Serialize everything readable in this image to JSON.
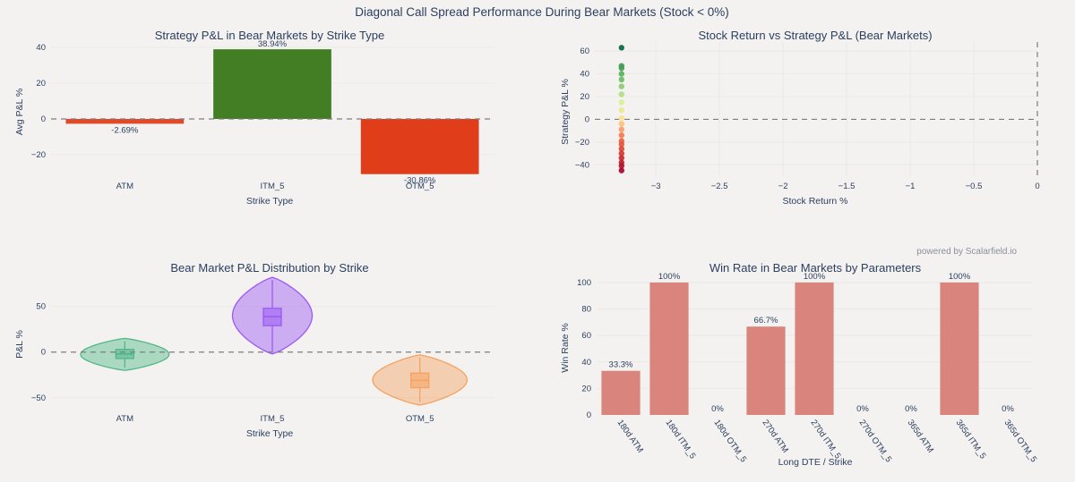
{
  "figure_title": "Diagonal Call Spread Performance During Bear Markets (Stock < 0%)",
  "credit": "powered by Scalarfield.io",
  "chart_data": [
    {
      "id": "pnl_by_strike",
      "type": "bar",
      "title": "Strategy P&L in Bear Markets by Strike Type",
      "xlabel": "Strike Type",
      "ylabel": "Avg P&L %",
      "categories": [
        "ATM",
        "ITM_5",
        "OTM_5"
      ],
      "values": [
        -2.69,
        38.94,
        -30.86
      ],
      "labels": [
        "-2.69%",
        "38.94%",
        "-30.86%"
      ],
      "colors": [
        "#e04a28",
        "#437e25",
        "#e03d1b"
      ],
      "ylim": [
        -32,
        43
      ],
      "yticks": [
        -20,
        0,
        20,
        40
      ],
      "zero_line": "dashed"
    },
    {
      "id": "return_vs_pnl",
      "type": "scatter",
      "title": "Stock Return vs Strategy P&L (Bear Markets)",
      "xlabel": "Stock Return %",
      "ylabel": "Strategy P&L %",
      "xlim": [
        -3.48,
        0
      ],
      "ylim": [
        -50,
        68
      ],
      "xticks": [
        -3,
        -2.5,
        -2,
        -1.5,
        -1,
        -0.5,
        0
      ],
      "yticks": [
        -40,
        -20,
        0,
        20,
        40,
        60
      ],
      "zero_lines": "dashed",
      "colorscale": "RdYlGn",
      "points": [
        {
          "x": -3.27,
          "y": 63
        },
        {
          "x": -3.27,
          "y": 47
        },
        {
          "x": -3.27,
          "y": 45
        },
        {
          "x": -3.27,
          "y": 40
        },
        {
          "x": -3.27,
          "y": 35
        },
        {
          "x": -3.27,
          "y": 29
        },
        {
          "x": -3.27,
          "y": 22
        },
        {
          "x": -3.27,
          "y": 15
        },
        {
          "x": -3.27,
          "y": 8
        },
        {
          "x": -3.27,
          "y": 1
        },
        {
          "x": -3.27,
          "y": -4
        },
        {
          "x": -3.27,
          "y": -9
        },
        {
          "x": -3.27,
          "y": -14
        },
        {
          "x": -3.27,
          "y": -19
        },
        {
          "x": -3.27,
          "y": -22
        },
        {
          "x": -3.27,
          "y": -26
        },
        {
          "x": -3.27,
          "y": -30
        },
        {
          "x": -3.27,
          "y": -34
        },
        {
          "x": -3.27,
          "y": -38
        },
        {
          "x": -3.27,
          "y": -41
        },
        {
          "x": -3.27,
          "y": -45
        }
      ]
    },
    {
      "id": "pnl_distribution",
      "type": "violin",
      "title": "Bear Market P&L Distribution by Strike",
      "xlabel": "Strike Type",
      "ylabel": "P&L %",
      "ylim": [
        -62,
        85
      ],
      "yticks": [
        -50,
        0,
        50
      ],
      "zero_line": "dashed",
      "categories": [
        "ATM",
        "ITM_5",
        "OTM_5"
      ],
      "series": [
        {
          "name": "ATM",
          "color": "#52b788",
          "min": -20,
          "max": 15,
          "q1": -7,
          "median": -2,
          "q3": 3,
          "mean": -2.69,
          "peak_width": 0.6
        },
        {
          "name": "ITM_5",
          "color": "#9b59f5",
          "min": -2,
          "max": 82,
          "q1": 29,
          "median": 39,
          "q3": 48,
          "mean": 38.94,
          "peak_width": 0.54
        },
        {
          "name": "OTM_5",
          "color": "#f4a261",
          "min": -58,
          "max": -3,
          "q1": -39,
          "median": -31,
          "q3": -23,
          "mean": -30.86,
          "peak_width": 0.64
        }
      ]
    },
    {
      "id": "win_rate",
      "type": "bar",
      "title": "Win Rate in Bear Markets by Parameters",
      "xlabel": "Long DTE / Strike",
      "ylabel": "Win Rate %",
      "categories": [
        "180d ATM",
        "180d ITM_5",
        "180d OTM_5",
        "270d ATM",
        "270d ITM_5",
        "270d OTM_5",
        "365d ATM",
        "365d ITM_5",
        "365d OTM_5"
      ],
      "values": [
        33.3,
        100,
        0,
        66.7,
        100,
        0,
        0,
        100,
        0
      ],
      "labels": [
        "33.3%",
        "100%",
        "0%",
        "66.7%",
        "100%",
        "0%",
        "0%",
        "100%",
        "0%"
      ],
      "color": "#d9847c",
      "ylim": [
        0,
        106
      ],
      "yticks": [
        0,
        20,
        40,
        60,
        80,
        100
      ]
    }
  ]
}
